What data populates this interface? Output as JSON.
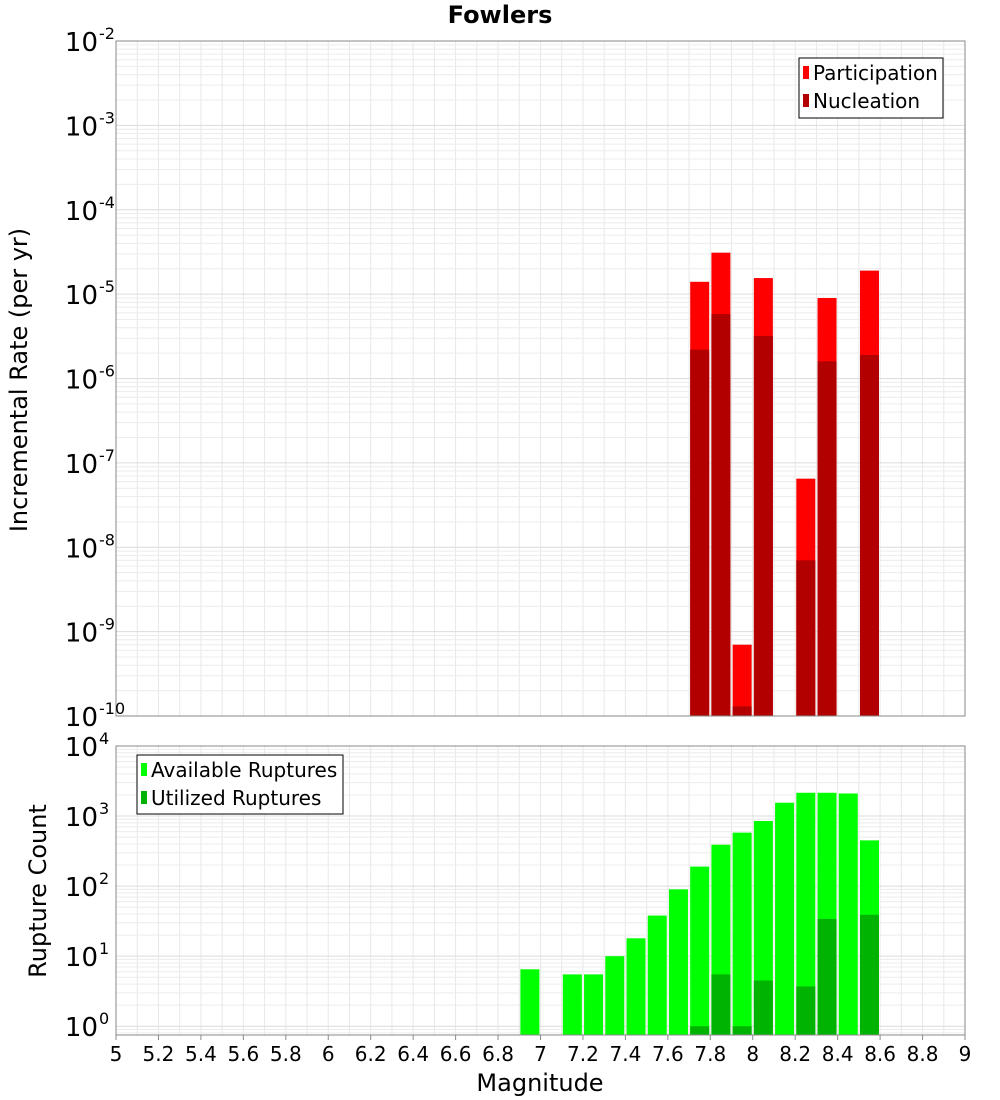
{
  "chart_data": [
    {
      "type": "bar",
      "panel": "top",
      "title": "Fowlers",
      "xlabel": "Magnitude",
      "ylabel": "Incremental Rate (per yr)",
      "yscale": "log",
      "ylim": [
        1e-10,
        0.01
      ],
      "xlim": [
        5,
        9
      ],
      "legend_position": "top-right",
      "colors": {
        "Participation": "#ff0000",
        "Nucleation": "#b20000"
      },
      "x": [
        7.75,
        7.85,
        7.95,
        8.05,
        8.25,
        8.35,
        8.55
      ],
      "series": [
        {
          "name": "Participation",
          "values": [
            1.4e-05,
            3.1e-05,
            7e-10,
            1.55e-05,
            6.5e-08,
            9e-06,
            1.9e-05
          ]
        },
        {
          "name": "Nucleation",
          "values": [
            2.2e-06,
            5.8e-06,
            1.3e-10,
            3.2e-06,
            7e-09,
            1.6e-06,
            1.9e-06
          ]
        }
      ]
    },
    {
      "type": "bar",
      "panel": "bottom",
      "xlabel": "Magnitude",
      "ylabel": "Rupture Count",
      "yscale": "log",
      "ylim": [
        0.75,
        10000
      ],
      "xlim": [
        5,
        9
      ],
      "legend_position": "top-left",
      "colors": {
        "Available Ruptures": "#00ff00",
        "Utilized Ruptures": "#00b300"
      },
      "x": [
        6.95,
        7.15,
        7.25,
        7.35,
        7.45,
        7.55,
        7.65,
        7.75,
        7.85,
        7.95,
        8.05,
        8.15,
        8.25,
        8.35,
        8.45,
        8.55
      ],
      "series": [
        {
          "name": "Available Ruptures",
          "values": [
            6.5,
            5.5,
            5.5,
            10,
            18,
            38,
            90,
            190,
            390,
            580,
            850,
            1550,
            2150,
            2150,
            2100,
            450
          ]
        },
        {
          "name": "Utilized Ruptures",
          "values": [
            0,
            0,
            0,
            0,
            0,
            0,
            0,
            1,
            5.5,
            1,
            4.5,
            0,
            3.7,
            34,
            0,
            39
          ]
        }
      ]
    }
  ],
  "xticks": [
    "5",
    "5.2",
    "5.4",
    "5.6",
    "5.8",
    "6",
    "6.2",
    "6.4",
    "6.6",
    "6.8",
    "7",
    "7.2",
    "7.4",
    "7.6",
    "7.8",
    "8",
    "8.2",
    "8.4",
    "8.6",
    "8.8",
    "9"
  ],
  "top_yticks": [
    {
      "base": "10",
      "exp": "-2"
    },
    {
      "base": "10",
      "exp": "-3"
    },
    {
      "base": "10",
      "exp": "-4"
    },
    {
      "base": "10",
      "exp": "-5"
    },
    {
      "base": "10",
      "exp": "-6"
    },
    {
      "base": "10",
      "exp": "-7"
    },
    {
      "base": "10",
      "exp": "-8"
    },
    {
      "base": "10",
      "exp": "-9"
    },
    {
      "base": "10",
      "exp": "-10"
    }
  ],
  "bottom_yticks": [
    {
      "base": "10",
      "exp": "4"
    },
    {
      "base": "10",
      "exp": "3"
    },
    {
      "base": "10",
      "exp": "2"
    },
    {
      "base": "10",
      "exp": "1"
    },
    {
      "base": "10",
      "exp": "0"
    }
  ]
}
